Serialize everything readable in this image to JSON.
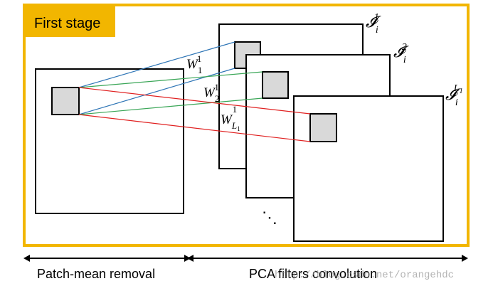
{
  "stage_label": "First stage",
  "left_section_label": "Patch-mean removal",
  "right_section_label": "PCA filters convolution",
  "watermark": "http://blog.csdn.net/orangehdc",
  "ellipsis": "⋱",
  "colors": {
    "frame": "#f2b600",
    "stage_bg": "#f2b600",
    "patch_fill": "#d9d9d9",
    "line_w1": "#2e75b6",
    "line_w2": "#3aa657",
    "line_wL": "#e02020"
  },
  "maps": [
    {
      "id": "I1",
      "base": "𝓘",
      "sub": "i",
      "sup": "1"
    },
    {
      "id": "I2",
      "base": "𝓘",
      "sub": "i",
      "sup": "2"
    },
    {
      "id": "IL",
      "base": "𝓘",
      "sub": "i",
      "sup": "L",
      "sup_sub": "1"
    }
  ],
  "filters": [
    {
      "id": "W1",
      "base": "W",
      "sub": "1",
      "sup": "1"
    },
    {
      "id": "W2",
      "base": "W",
      "sub": "2",
      "sup": "1"
    },
    {
      "id": "WL",
      "base": "W",
      "sub": "L",
      "sub_sub": "1",
      "sup": "1"
    }
  ]
}
